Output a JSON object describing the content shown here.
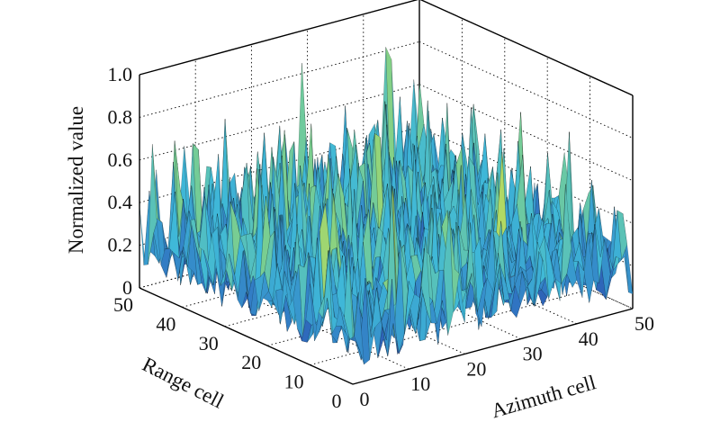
{
  "chart_data": {
    "type": "surface",
    "title": "",
    "xlabel": "Azimuth cell",
    "ylabel": "Range cell",
    "zlabel": "Normalized value",
    "xlim": [
      0,
      50
    ],
    "ylim": [
      0,
      50
    ],
    "zlim": [
      0,
      1.0
    ],
    "xticks": [
      "0",
      "10",
      "20",
      "30",
      "40",
      "50"
    ],
    "yticks": [
      "0",
      "10",
      "20",
      "30",
      "40",
      "50"
    ],
    "zticks": [
      "0",
      "0.2",
      "0.4",
      "0.6",
      "0.8",
      "1.0"
    ],
    "grid": true,
    "colormap": [
      "#2b2f8f",
      "#2f6fc0",
      "#3fb8d8",
      "#7fd08a",
      "#e6e23a",
      "#d84a1e",
      "#a01010"
    ],
    "edge_color": "#000000"
  }
}
